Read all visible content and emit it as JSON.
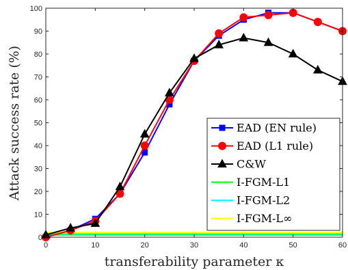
{
  "chart_data": {
    "type": "line",
    "xlabel": "transferability parameter κ",
    "ylabel": "Attack success rate (%)",
    "xlim": [
      0,
      60
    ],
    "ylim": [
      0,
      100
    ],
    "x_ticks": [
      0,
      10,
      20,
      30,
      40,
      50,
      60
    ],
    "y_ticks": [
      0,
      10,
      20,
      30,
      40,
      50,
      60,
      70,
      80,
      90,
      100
    ],
    "grid": false,
    "legend_position": "bottom-right",
    "x": [
      0,
      5,
      10,
      15,
      20,
      25,
      30,
      35,
      40,
      45,
      50,
      55,
      60
    ],
    "series": [
      {
        "name": "EAD (EN rule)",
        "color": "#0000ff",
        "marker": "square",
        "values": [
          0,
          3,
          8,
          19,
          37,
          58,
          77,
          88,
          95,
          98,
          98,
          94,
          90
        ]
      },
      {
        "name": "EAD (L1 rule)",
        "color": "#ff0000",
        "marker": "circle",
        "values": [
          0,
          3,
          7,
          19,
          40,
          60,
          77,
          89,
          96,
          97,
          98,
          94,
          90
        ]
      },
      {
        "name": "C&W",
        "color": "#000000",
        "marker": "triangle",
        "values": [
          1,
          4,
          6,
          22,
          45,
          63,
          78,
          84,
          87,
          85,
          80,
          73,
          68
        ]
      },
      {
        "name": "I-FGM-L1",
        "color": "#00ff00",
        "marker": "none",
        "values": [
          1,
          1,
          1,
          1,
          1,
          1,
          1,
          1,
          1,
          1,
          1,
          1,
          1
        ]
      },
      {
        "name": "I-FGM-L2",
        "color": "#00ffff",
        "marker": "none",
        "values": [
          1.5,
          1.5,
          1.5,
          1.5,
          1.5,
          1.5,
          1.5,
          1.5,
          1.5,
          1.5,
          1.5,
          1.5,
          1.5
        ]
      },
      {
        "name": "I-FGM-L∞",
        "color": "#ffff00",
        "marker": "none",
        "values": [
          2,
          2,
          2,
          2,
          2,
          2,
          2,
          2,
          2,
          2,
          2,
          2,
          2
        ]
      }
    ]
  }
}
